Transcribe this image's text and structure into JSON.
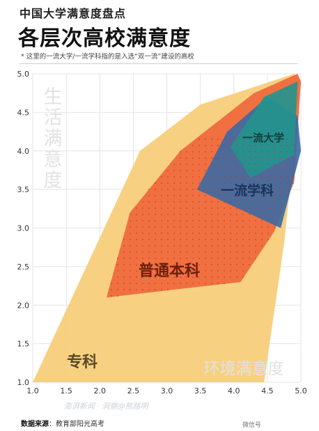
{
  "header": {
    "kicker": "中国大学满意度盘点",
    "title": "各层次高校满意度",
    "note": "* 这里的一流大学/一流学科指的是入选“双一流”建设的高校"
  },
  "footer": {
    "source_label": "数据来源",
    "source_text": "：教育部阳光高考",
    "watermark": "澎湃新闻 · 洞察@熊路明",
    "right_mark": "微信号"
  },
  "colors": {
    "zhuanke": "#f7cf7a",
    "putong": "#ef6a3d",
    "yiliu_xueke": "#3e6aa3",
    "yiliu_daxue": "#23948e",
    "axis_label": "#e2e2e2",
    "dots": "#cc3b1b"
  },
  "chart_data": {
    "type": "area",
    "xlim": [
      1.0,
      5.0
    ],
    "ylim": [
      1.0,
      5.0
    ],
    "xticks": [
      "1.0",
      "1.5",
      "2.0",
      "2.5",
      "3.0",
      "3.5",
      "4.0",
      "4.5",
      "5.0"
    ],
    "yticks": [
      "1.0",
      "1.5",
      "2.0",
      "2.5",
      "3.0",
      "3.5",
      "4.0",
      "4.5",
      "5.0"
    ],
    "xlabel": "环境满意度",
    "ylabel": "生活满意度",
    "grid": true,
    "series": [
      {
        "name": "专科",
        "color_key": "zhuanke",
        "polygon": [
          [
            1.0,
            1.0
          ],
          [
            2.6,
            4.0
          ],
          [
            3.5,
            4.6
          ],
          [
            4.9,
            5.0
          ],
          [
            5.0,
            4.9
          ],
          [
            4.75,
            2.8
          ],
          [
            4.45,
            1.0
          ]
        ]
      },
      {
        "name": "普通本科",
        "color_key": "putong",
        "polygon": [
          [
            2.1,
            2.1
          ],
          [
            2.45,
            3.2
          ],
          [
            3.2,
            4.0
          ],
          [
            4.3,
            4.75
          ],
          [
            4.95,
            5.0
          ],
          [
            5.0,
            4.9
          ],
          [
            4.9,
            3.6
          ],
          [
            4.6,
            2.95
          ],
          [
            4.1,
            2.3
          ]
        ]
      },
      {
        "name": "一流学科",
        "color_key": "yiliu_xueke",
        "polygon": [
          [
            3.45,
            3.5
          ],
          [
            3.9,
            4.25
          ],
          [
            4.5,
            4.7
          ],
          [
            4.95,
            4.45
          ],
          [
            5.0,
            4.0
          ],
          [
            4.7,
            3.0
          ]
        ]
      },
      {
        "name": "一流大学",
        "color_key": "yiliu_daxue",
        "polygon": [
          [
            3.95,
            4.05
          ],
          [
            4.45,
            4.7
          ],
          [
            4.95,
            4.9
          ],
          [
            4.9,
            3.95
          ],
          [
            4.25,
            3.65
          ]
        ]
      }
    ]
  }
}
